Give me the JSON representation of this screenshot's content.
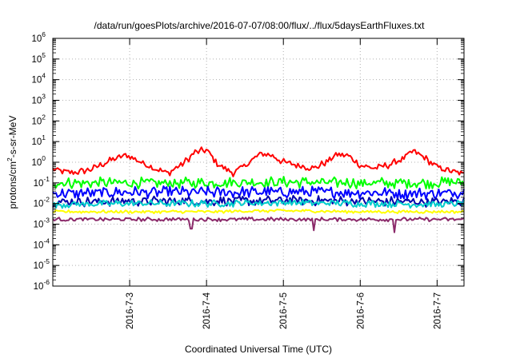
{
  "chart_data": {
    "type": "line",
    "title": "/data/run/goesPlots/archive/2016-07-07/08:00/flux/../flux/5daysEarthFluxes.txt",
    "xlabel": "Coordinated Universal Time (UTC)",
    "ylabel": {
      "base": "protons/cm",
      "sup": "2",
      "rest": "-s-sr-MeV"
    },
    "scale_y": "log",
    "ylim_exp": [
      -6,
      6
    ],
    "y_ticks": [
      {
        "base": "10",
        "exp": "-6"
      },
      {
        "base": "10",
        "exp": "-5"
      },
      {
        "base": "10",
        "exp": "-4"
      },
      {
        "base": "10",
        "exp": "-3"
      },
      {
        "base": "10",
        "exp": "-2"
      },
      {
        "base": "10",
        "exp": "-1"
      },
      {
        "base": "10",
        "exp": "0"
      },
      {
        "base": "10",
        "exp": "1"
      },
      {
        "base": "10",
        "exp": "2"
      },
      {
        "base": "10",
        "exp": "3"
      },
      {
        "base": "10",
        "exp": "4"
      },
      {
        "base": "10",
        "exp": "5"
      },
      {
        "base": "10",
        "exp": "6"
      }
    ],
    "x_ticks": [
      "2016-7-3",
      "2016-7-4",
      "2016-7-5",
      "2016-7-6",
      "2016-7-7"
    ],
    "x_tick_pos": [
      1,
      2,
      3,
      4,
      5
    ],
    "xlim": [
      0,
      5.35
    ],
    "grid": true,
    "series": [
      {
        "color": "#ff0000",
        "values": [
          [
            0,
            0.45
          ],
          [
            0.25,
            0.3
          ],
          [
            0.5,
            0.45
          ],
          [
            0.75,
            1.2
          ],
          [
            0.95,
            2.2
          ],
          [
            1.15,
            1.0
          ],
          [
            1.35,
            0.45
          ],
          [
            1.5,
            0.3
          ],
          [
            1.7,
            0.9
          ],
          [
            1.85,
            3.0
          ],
          [
            2.0,
            4.0
          ],
          [
            2.15,
            0.8
          ],
          [
            2.35,
            0.3
          ],
          [
            2.5,
            0.7
          ],
          [
            2.7,
            2.5
          ],
          [
            2.85,
            2.2
          ],
          [
            3.0,
            1.0
          ],
          [
            3.2,
            0.7
          ],
          [
            3.4,
            0.5
          ],
          [
            3.55,
            1.0
          ],
          [
            3.7,
            2.5
          ],
          [
            3.85,
            2.0
          ],
          [
            4.0,
            0.7
          ],
          [
            4.2,
            0.5
          ],
          [
            4.4,
            0.8
          ],
          [
            4.55,
            1.5
          ],
          [
            4.7,
            3.5
          ],
          [
            4.85,
            1.5
          ],
          [
            5.0,
            0.6
          ],
          [
            5.15,
            0.4
          ],
          [
            5.35,
            0.25
          ]
        ],
        "noise": 0.18,
        "dips": []
      },
      {
        "color": "#00ff00",
        "values": [
          [
            0,
            0.1
          ],
          [
            1,
            0.1
          ],
          [
            2,
            0.1
          ],
          [
            3,
            0.11
          ],
          [
            4,
            0.1
          ],
          [
            5,
            0.1
          ],
          [
            5.35,
            0.11
          ]
        ],
        "noise": 0.28,
        "dips": []
      },
      {
        "color": "#0000ff",
        "values": [
          [
            0,
            0.03
          ],
          [
            1,
            0.035
          ],
          [
            2,
            0.035
          ],
          [
            3,
            0.035
          ],
          [
            4,
            0.035
          ],
          [
            5,
            0.03
          ],
          [
            5.35,
            0.035
          ]
        ],
        "noise": 0.3,
        "dips": []
      },
      {
        "color": "#0000aa",
        "values": [
          [
            0,
            0.012
          ],
          [
            1,
            0.013
          ],
          [
            2,
            0.013
          ],
          [
            3,
            0.014
          ],
          [
            4,
            0.013
          ],
          [
            5,
            0.012
          ],
          [
            5.35,
            0.013
          ]
        ],
        "noise": 0.25,
        "dips": []
      },
      {
        "color": "#00cccc",
        "values": [
          [
            0,
            0.009
          ],
          [
            1,
            0.01
          ],
          [
            2,
            0.01
          ],
          [
            3,
            0.011
          ],
          [
            4,
            0.01
          ],
          [
            5,
            0.009
          ],
          [
            5.35,
            0.01
          ]
        ],
        "noise": 0.18,
        "dips": []
      },
      {
        "color": "#ffff00",
        "values": [
          [
            0,
            0.004
          ],
          [
            1,
            0.004
          ],
          [
            2,
            0.004
          ],
          [
            3,
            0.0045
          ],
          [
            4,
            0.004
          ],
          [
            5,
            0.004
          ],
          [
            5.35,
            0.004
          ]
        ],
        "noise": 0.08,
        "dips": []
      },
      {
        "color": "#8b2a6a",
        "values": [
          [
            0,
            0.0017
          ],
          [
            1,
            0.0017
          ],
          [
            2,
            0.0017
          ],
          [
            3,
            0.0017
          ],
          [
            4,
            0.0017
          ],
          [
            5,
            0.0017
          ],
          [
            5.35,
            0.0017
          ]
        ],
        "noise": 0.1,
        "dips": [
          [
            1.8,
            0.0006
          ],
          [
            3.4,
            0.0005
          ],
          [
            4.45,
            0.0004
          ]
        ]
      }
    ]
  }
}
